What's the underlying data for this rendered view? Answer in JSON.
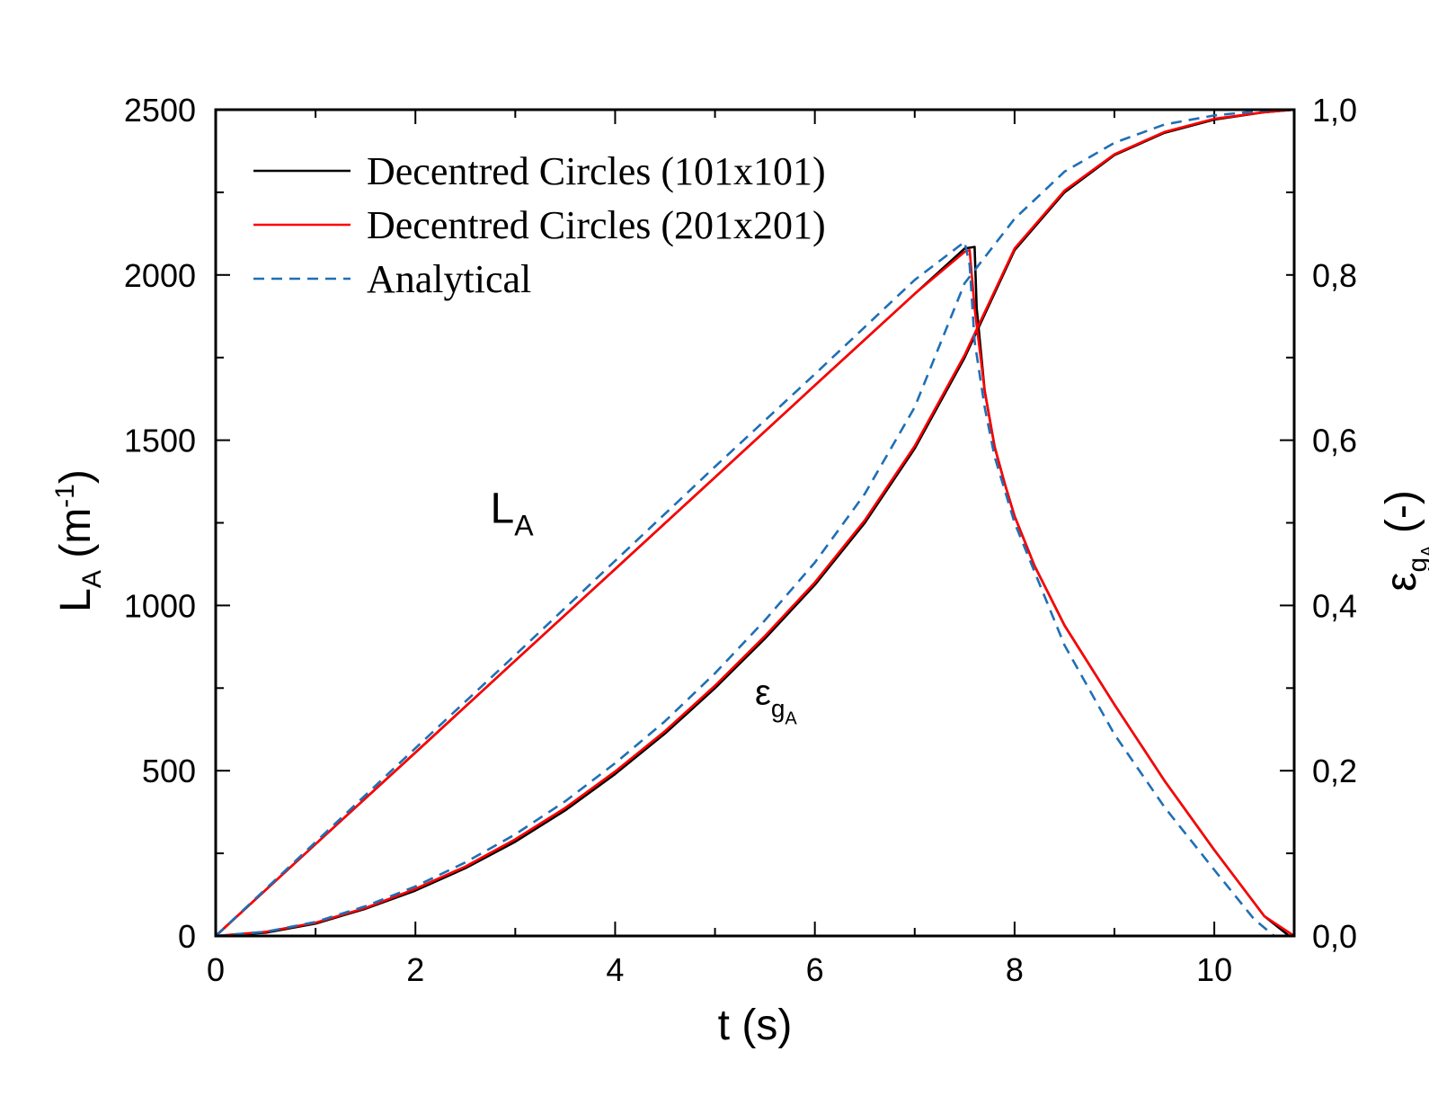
{
  "chart_data": {
    "type": "line",
    "xlabel": "t (s)",
    "ylabel_left": {
      "main": "L",
      "sub": "A",
      "unit_open": " (m",
      "unit_sup": "-1",
      "unit_close": ")"
    },
    "ylabel_right": {
      "main": "ε",
      "sub": "g",
      "subsub": "A",
      "unit": " (-)"
    },
    "xlim": [
      0,
      10.8
    ],
    "ylim_left": [
      0,
      2500
    ],
    "ylim_right": [
      0,
      1.0
    ],
    "xticks": [
      {
        "value": 0,
        "label": "0"
      },
      {
        "value": 2,
        "label": "2"
      },
      {
        "value": 4,
        "label": "4"
      },
      {
        "value": 6,
        "label": "6"
      },
      {
        "value": 8,
        "label": "8"
      },
      {
        "value": 10,
        "label": "10"
      }
    ],
    "yticks_left": [
      {
        "value": 0,
        "label": "0"
      },
      {
        "value": 500,
        "label": "500"
      },
      {
        "value": 1000,
        "label": "1000"
      },
      {
        "value": 1500,
        "label": "1500"
      },
      {
        "value": 2000,
        "label": "2000"
      },
      {
        "value": 2500,
        "label": "2500"
      }
    ],
    "yticks_right": [
      {
        "value": 0.0,
        "label": "0,0"
      },
      {
        "value": 0.2,
        "label": "0,2"
      },
      {
        "value": 0.4,
        "label": "0,4"
      },
      {
        "value": 0.6,
        "label": "0,6"
      },
      {
        "value": 0.8,
        "label": "0,8"
      },
      {
        "value": 1.0,
        "label": "1,0"
      }
    ],
    "legend": {
      "position": "top-left"
    },
    "annotations": [
      {
        "main": "L",
        "sub": "A",
        "x": 2.75,
        "y_left": 1250
      },
      {
        "main": "ε",
        "sub": "g",
        "subsub": "A",
        "x": 5.4,
        "y_left": 700
      }
    ],
    "series": [
      {
        "name": "Decentred Circles (101x101)",
        "color": "#000000",
        "dash": "solid",
        "L_A": {
          "x": [
            0,
            1,
            2,
            3,
            4,
            5,
            6,
            7,
            7.5,
            7.6,
            7.62,
            7.7,
            7.8,
            7.9,
            8.0,
            8.2,
            8.5,
            9.0,
            9.5,
            10.0,
            10.5,
            10.75
          ],
          "y": [
            0,
            278,
            555,
            833,
            1110,
            1388,
            1666,
            1943,
            2080,
            2085,
            1900,
            1650,
            1480,
            1370,
            1270,
            1120,
            940,
            700,
            470,
            260,
            60,
            0
          ]
        },
        "eps_gA": {
          "x": [
            0,
            0.5,
            1,
            1.5,
            2,
            2.5,
            3,
            3.5,
            4,
            4.5,
            5,
            5.5,
            6,
            6.5,
            7,
            7.5,
            8,
            8.5,
            9,
            9.5,
            10,
            10.5,
            10.8
          ],
          "y": [
            0,
            0.004,
            0.015,
            0.033,
            0.055,
            0.082,
            0.114,
            0.152,
            0.196,
            0.245,
            0.3,
            0.36,
            0.425,
            0.5,
            0.59,
            0.7,
            0.83,
            0.9,
            0.945,
            0.972,
            0.988,
            0.997,
            1.0
          ]
        }
      },
      {
        "name": "Decentred Circles (201x201)",
        "color": "#ff0000",
        "dash": "solid",
        "L_A": {
          "x": [
            0,
            1,
            2,
            3,
            4,
            5,
            6,
            7,
            7.5,
            7.55,
            7.6,
            7.7,
            7.8,
            7.9,
            8.0,
            8.2,
            8.5,
            9.0,
            9.5,
            10.0,
            10.5,
            10.8
          ],
          "y": [
            0,
            278,
            555,
            833,
            1110,
            1388,
            1666,
            1943,
            2070,
            2075,
            1900,
            1650,
            1480,
            1370,
            1270,
            1120,
            940,
            700,
            470,
            260,
            60,
            0
          ]
        },
        "eps_gA": {
          "x": [
            0,
            0.5,
            1,
            1.5,
            2,
            2.5,
            3,
            3.5,
            4,
            4.5,
            5,
            5.5,
            6,
            6.5,
            7,
            7.5,
            8,
            8.5,
            9,
            9.5,
            10,
            10.5,
            10.8
          ],
          "y": [
            0,
            0.005,
            0.016,
            0.034,
            0.057,
            0.084,
            0.117,
            0.155,
            0.199,
            0.248,
            0.303,
            0.363,
            0.428,
            0.503,
            0.593,
            0.703,
            0.832,
            0.902,
            0.946,
            0.973,
            0.989,
            0.997,
            1.0
          ]
        }
      },
      {
        "name": "Analytical",
        "color": "#1f6fb5",
        "dash": "dashed",
        "L_A": {
          "x": [
            0,
            1,
            2,
            3,
            4,
            5,
            6,
            7,
            7.5,
            7.55,
            7.6,
            7.7,
            7.8,
            8.0,
            8.5,
            9.0,
            9.5,
            10.0,
            10.4,
            10.6
          ],
          "y": [
            0,
            284,
            568,
            850,
            1135,
            1420,
            1700,
            1985,
            2100,
            2030,
            1800,
            1600,
            1450,
            1250,
            880,
            610,
            390,
            200,
            50,
            0
          ]
        },
        "eps_gA": {
          "x": [
            0,
            0.5,
            1,
            1.5,
            2,
            2.5,
            3,
            3.5,
            4,
            4.5,
            5,
            5.5,
            6,
            6.5,
            7,
            7.5,
            8,
            8.5,
            9,
            9.5,
            10,
            10.5,
            10.8
          ],
          "y": [
            0,
            0.005,
            0.017,
            0.036,
            0.06,
            0.089,
            0.123,
            0.163,
            0.209,
            0.26,
            0.318,
            0.382,
            0.452,
            0.535,
            0.64,
            0.79,
            0.868,
            0.925,
            0.96,
            0.982,
            0.993,
            0.999,
            1.0
          ]
        }
      }
    ]
  }
}
